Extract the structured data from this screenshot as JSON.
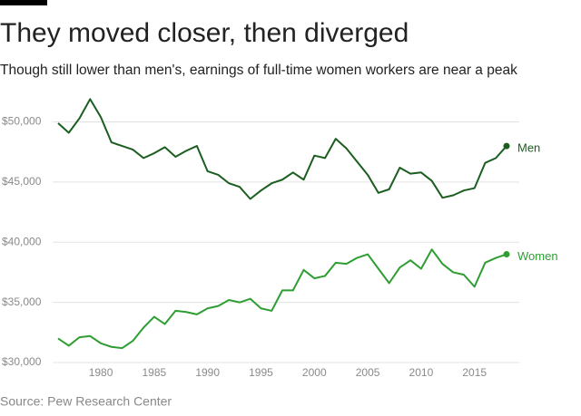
{
  "chart_data": {
    "type": "line",
    "title": "They moved closer, then diverged",
    "subtitle": "Though still lower than men's, earnings of full-time women workers are near a peak",
    "source": "Source: Pew Research Center",
    "x": [
      1976,
      1977,
      1978,
      1979,
      1980,
      1981,
      1982,
      1983,
      1984,
      1985,
      1986,
      1987,
      1988,
      1989,
      1990,
      1991,
      1992,
      1993,
      1994,
      1995,
      1996,
      1997,
      1998,
      1999,
      2000,
      2001,
      2002,
      2003,
      2004,
      2005,
      2006,
      2007,
      2008,
      2009,
      2010,
      2011,
      2012,
      2013,
      2014,
      2015,
      2016,
      2017,
      2018
    ],
    "series": [
      {
        "name": "Men",
        "color": "#1b5e20",
        "values": [
          49900,
          49100,
          50300,
          51900,
          50400,
          48300,
          48000,
          47700,
          47000,
          47400,
          47900,
          47100,
          47600,
          48000,
          45900,
          45600,
          44900,
          44600,
          43600,
          44300,
          44900,
          45200,
          45800,
          45200,
          47200,
          47000,
          48600,
          47800,
          46700,
          45600,
          44100,
          44400,
          46200,
          45700,
          45800,
          45100,
          43700,
          43900,
          44300,
          44500,
          46600,
          47000,
          48000
        ]
      },
      {
        "name": "Women",
        "color": "#2e9e33",
        "values": [
          32000,
          31400,
          32100,
          32200,
          31600,
          31300,
          31200,
          31800,
          32900,
          33800,
          33200,
          34300,
          34200,
          34000,
          34500,
          34700,
          35200,
          35000,
          35300,
          34500,
          34300,
          36000,
          36000,
          37700,
          37000,
          37200,
          38300,
          38200,
          38700,
          39000,
          37800,
          36600,
          37900,
          38500,
          37800,
          39400,
          38200,
          37500,
          37300,
          36300,
          38300,
          38700,
          39000
        ]
      }
    ],
    "xlim": [
      1976,
      2018
    ],
    "xticks": [
      1980,
      1985,
      1990,
      1995,
      2000,
      2005,
      2010,
      2015
    ],
    "ylim": [
      30000,
      52000
    ],
    "yticks": [
      {
        "value": 30000,
        "label": "$30,000"
      },
      {
        "value": 35000,
        "label": "$35,000"
      },
      {
        "value": 40000,
        "label": "$40,000"
      },
      {
        "value": 45000,
        "label": "$45,000"
      },
      {
        "value": 50000,
        "label": "$50,000"
      }
    ],
    "grid": true
  }
}
